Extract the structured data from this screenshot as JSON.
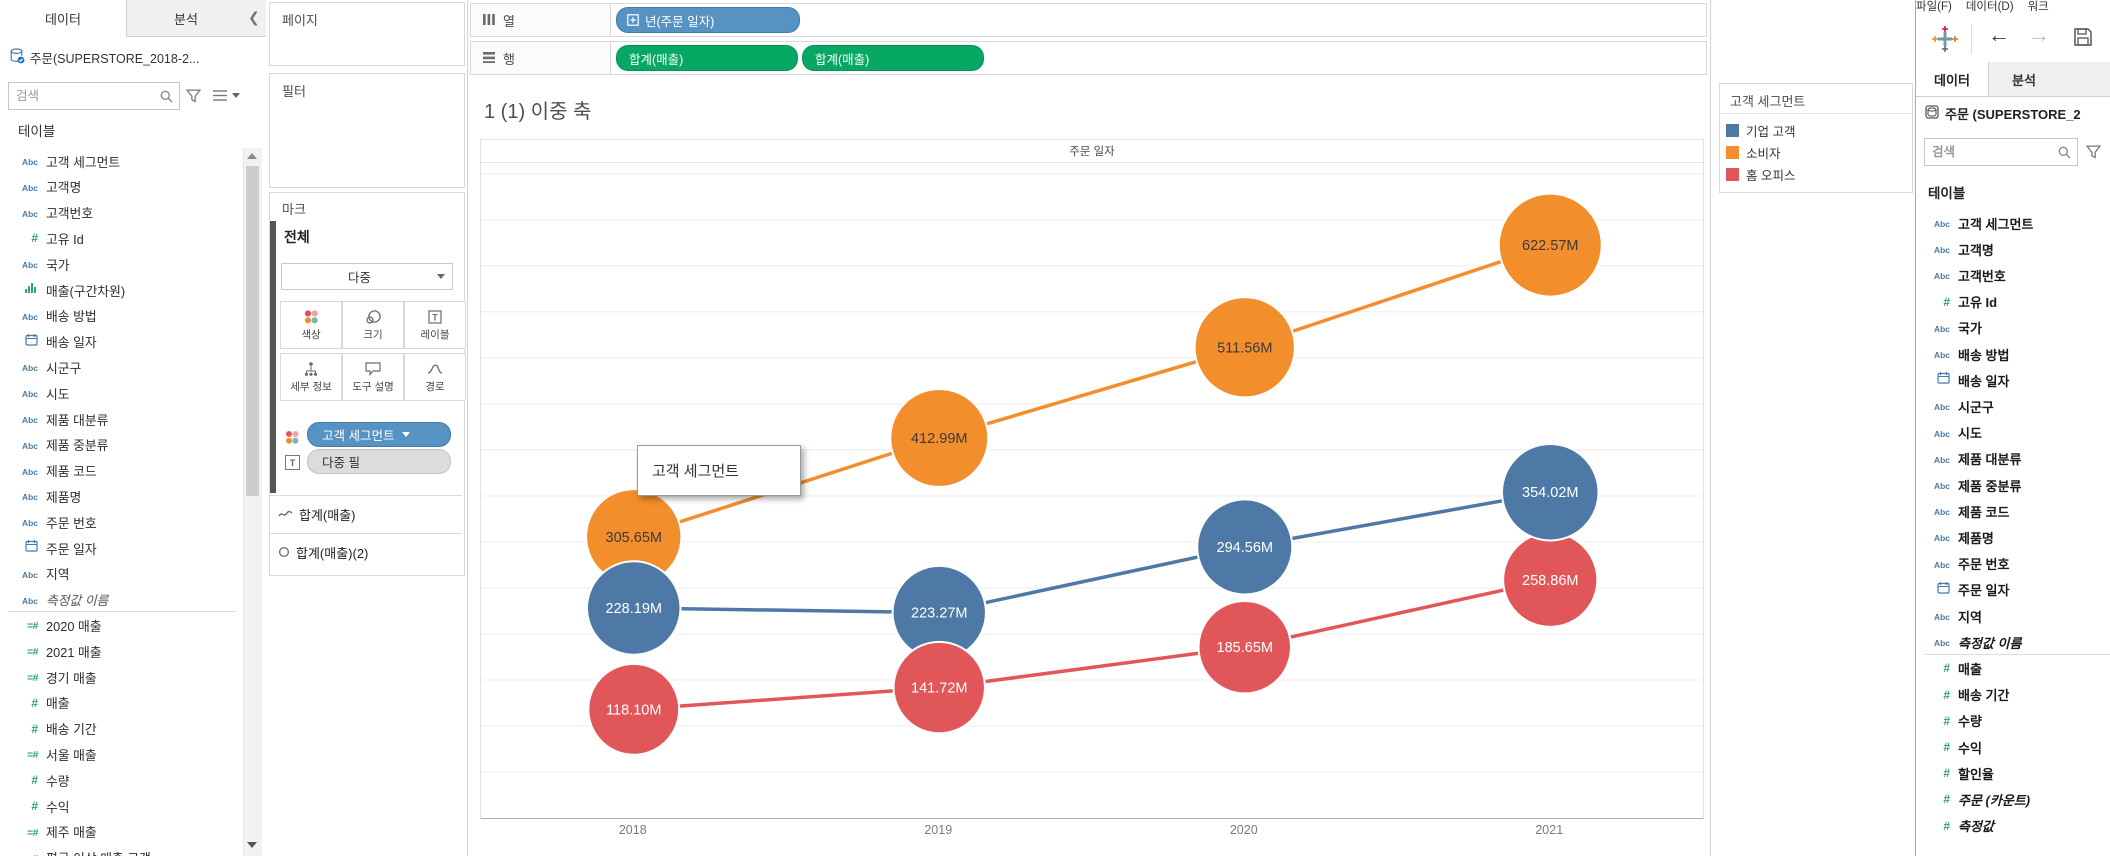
{
  "left_panel": {
    "tab_data": "데이터",
    "tab_analytics": "분석",
    "datasource": "주문(SUPERSTORE_2018-2...",
    "search_placeholder": "검색",
    "tables_label": "테이블",
    "fields": [
      {
        "icon": "abc",
        "label": "고객 세그먼트"
      },
      {
        "icon": "abc",
        "label": "고객명"
      },
      {
        "icon": "abc",
        "label": "고객번호"
      },
      {
        "icon": "num",
        "label": "고유 Id"
      },
      {
        "icon": "abc",
        "label": "국가"
      },
      {
        "icon": "bin",
        "label": "매출(구간차원)"
      },
      {
        "icon": "abc",
        "label": "배송 방법"
      },
      {
        "icon": "date",
        "label": "배송 일자"
      },
      {
        "icon": "abc",
        "label": "시군구"
      },
      {
        "icon": "abc",
        "label": "시도"
      },
      {
        "icon": "abc",
        "label": "제품 대분류"
      },
      {
        "icon": "abc",
        "label": "제품 중분류"
      },
      {
        "icon": "abc",
        "label": "제품 코드"
      },
      {
        "icon": "abc",
        "label": "제품명"
      },
      {
        "icon": "abc",
        "label": "주문 번호"
      },
      {
        "icon": "date",
        "label": "주문 일자"
      },
      {
        "icon": "abc",
        "label": "지역"
      },
      {
        "icon": "abc",
        "label": "측정값 이름",
        "italic": true,
        "divider_after": true
      },
      {
        "icon": "calc",
        "label": "2020 매출"
      },
      {
        "icon": "calc",
        "label": "2021 매출"
      },
      {
        "icon": "calc",
        "label": "경기 매출"
      },
      {
        "icon": "num",
        "label": "매출"
      },
      {
        "icon": "num",
        "label": "배송 기간"
      },
      {
        "icon": "calc",
        "label": "서울 매출"
      },
      {
        "icon": "num",
        "label": "수량"
      },
      {
        "icon": "num",
        "label": "수익"
      },
      {
        "icon": "calc",
        "label": "제주 매출"
      },
      {
        "icon": "calc",
        "label": "평균 이상 매출 고객",
        "clipped": true
      }
    ]
  },
  "shelf_panel": {
    "pages_label": "페이지",
    "filters_label": "필터",
    "marks_label": "마크",
    "marks_all_label": "전체",
    "mark_type": "다중",
    "buttons": [
      "색상",
      "크기",
      "레이블",
      "세부 정보",
      "도구 설명",
      "경로"
    ],
    "color_pill": "고객 세그먼트",
    "label_pill": "다중 필",
    "subcards": [
      "합계(매출)",
      "합계(매출)(2)"
    ],
    "tooltip_text": "고객 세그먼트"
  },
  "shelves": {
    "columns_label": "열",
    "rows_label": "행",
    "columns_pills": [
      "년(주문 일자)"
    ],
    "rows_pills": [
      "합계(매출)",
      "합계(매출)"
    ]
  },
  "sheet_title": "1 (1) 이중 축",
  "legend": {
    "title": "고객 세그먼트",
    "items": [
      {
        "label": "기업 고객",
        "color": "#4e79a7"
      },
      {
        "label": "소비자",
        "color": "#f28e2b"
      },
      {
        "label": "홈 오피스",
        "color": "#e15759"
      }
    ]
  },
  "chart_data": {
    "type": "line",
    "subtype": "dual-axis line + circle bubble marks, labels shown",
    "pane_title": "주문 일자",
    "title": "1 (1) 이중 축",
    "categories": [
      "2018",
      "2019",
      "2020",
      "2021"
    ],
    "series": [
      {
        "name": "소비자",
        "color": "#f28e2b",
        "values_m": [
          305.65,
          412.99,
          511.56,
          622.57
        ],
        "labels": [
          "305.65M",
          "412.99M",
          "511.56M",
          "622.57M"
        ],
        "label_color": "#3b3b3b"
      },
      {
        "name": "기업 고객",
        "color": "#4e79a7",
        "values_m": [
          228.19,
          223.27,
          294.56,
          354.02
        ],
        "labels": [
          "228.19M",
          "223.27M",
          "294.56M",
          "354.02M"
        ],
        "label_color": "#ffffff"
      },
      {
        "name": "홈 오피스",
        "color": "#e15759",
        "values_m": [
          118.1,
          141.72,
          185.65,
          258.86
        ],
        "labels": [
          "118.10M",
          "141.72M",
          "185.65M",
          "258.86M"
        ],
        "label_color": "#ffffff"
      }
    ],
    "unit": "M (millions)",
    "y_axis": {
      "min": 0,
      "max_visible": 714,
      "gridline_step_m": 50,
      "axis_labels_hidden": true
    },
    "grid": true,
    "legend_position": "right"
  },
  "right_window": {
    "menu_items": [
      "파일(F)",
      "데이터(D)",
      "워크"
    ],
    "tab_data": "데이터",
    "tab_analytics": "분석",
    "datasource": "주문 (SUPERSTORE_2",
    "search_placeholder": "검색",
    "tables_label": "테이블",
    "fields": [
      {
        "icon": "abc",
        "label": "고객 세그먼트"
      },
      {
        "icon": "abc",
        "label": "고객명"
      },
      {
        "icon": "abc",
        "label": "고객번호"
      },
      {
        "icon": "num",
        "label": "고유 Id"
      },
      {
        "icon": "abc",
        "label": "국가"
      },
      {
        "icon": "abc",
        "label": "배송 방법"
      },
      {
        "icon": "date",
        "label": "배송 일자"
      },
      {
        "icon": "abc",
        "label": "시군구"
      },
      {
        "icon": "abc",
        "label": "시도"
      },
      {
        "icon": "abc",
        "label": "제품 대분류"
      },
      {
        "icon": "abc",
        "label": "제품 중분류"
      },
      {
        "icon": "abc",
        "label": "제품 코드"
      },
      {
        "icon": "abc",
        "label": "제품명"
      },
      {
        "icon": "abc",
        "label": "주문 번호"
      },
      {
        "icon": "date",
        "label": "주문 일자"
      },
      {
        "icon": "abc",
        "label": "지역"
      },
      {
        "icon": "abc",
        "label": "측정값 이름",
        "italic": true,
        "divider_after": true
      },
      {
        "icon": "num",
        "label": "매출"
      },
      {
        "icon": "num",
        "label": "배송 기간"
      },
      {
        "icon": "num",
        "label": "수량"
      },
      {
        "icon": "num",
        "label": "수익"
      },
      {
        "icon": "num",
        "label": "할인율"
      },
      {
        "icon": "num",
        "label": "주문 (카운트)",
        "italic": true
      },
      {
        "icon": "num",
        "label": "측정값",
        "italic": true
      }
    ]
  }
}
